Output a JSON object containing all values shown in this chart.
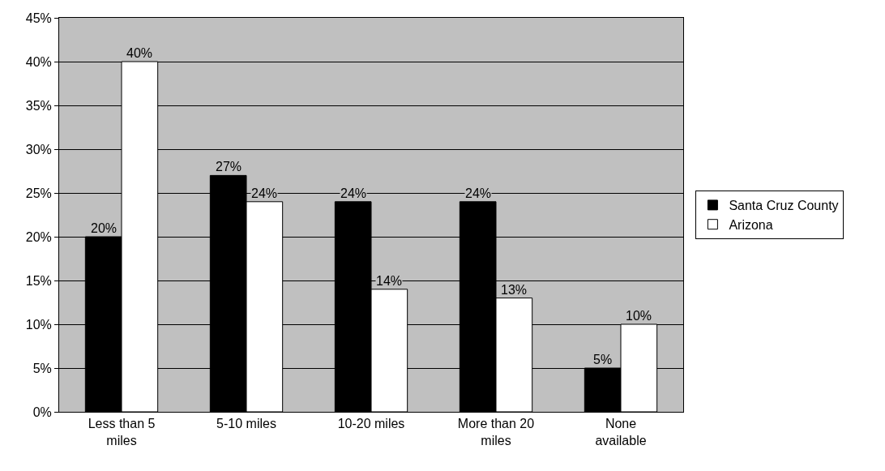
{
  "chart_data": {
    "type": "bar",
    "categories": [
      "Less than 5 miles",
      "5-10 miles",
      "10-20 miles",
      "More than 20 miles",
      "None available"
    ],
    "series": [
      {
        "name": "Santa Cruz County",
        "color": "#000000",
        "values": [
          20,
          27,
          24,
          24,
          5
        ],
        "value_labels": [
          "20%",
          "27%",
          "24%",
          "24%",
          "5%"
        ]
      },
      {
        "name": "Arizona",
        "color": "#ffffff",
        "values": [
          40,
          24,
          14,
          13,
          10
        ],
        "value_labels": [
          "40%",
          "24%",
          "14%",
          "13%",
          "10%"
        ]
      }
    ],
    "ylim": [
      0,
      45
    ],
    "yticks": [
      {
        "value": 0,
        "label": "0%"
      },
      {
        "value": 5,
        "label": "5%"
      },
      {
        "value": 10,
        "label": "10%"
      },
      {
        "value": 15,
        "label": "15%"
      },
      {
        "value": 20,
        "label": "20%"
      },
      {
        "value": 25,
        "label": "25%"
      },
      {
        "value": 30,
        "label": "30%"
      },
      {
        "value": 35,
        "label": "35%"
      },
      {
        "value": 40,
        "label": "40%"
      },
      {
        "value": 45,
        "label": "45%"
      }
    ],
    "grid": "y",
    "legend": "right"
  }
}
